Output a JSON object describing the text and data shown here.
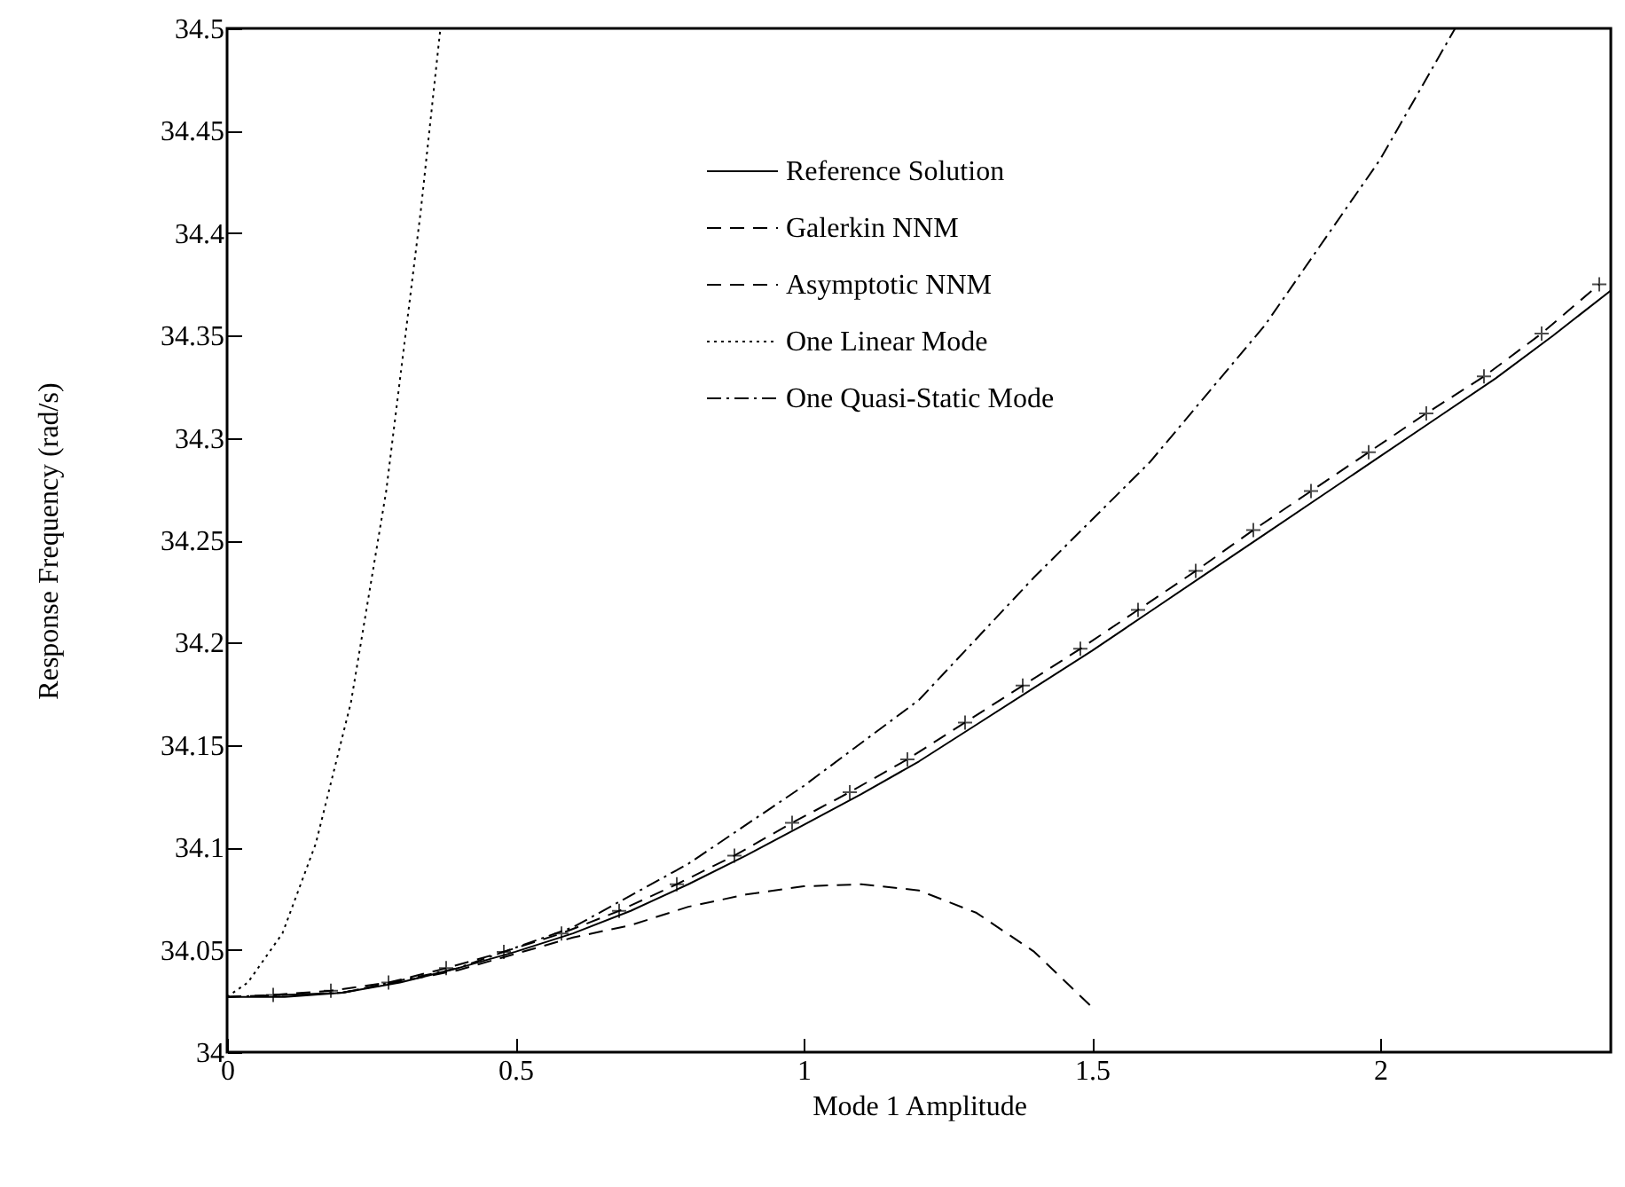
{
  "chart_data": {
    "type": "line",
    "xlabel": "Mode 1 Amplitude",
    "ylabel": "Response Frequency (rad/s)",
    "xlim": [
      0,
      2.4
    ],
    "ylim": [
      34,
      34.5
    ],
    "xticks": [
      0,
      0.5,
      1,
      1.5,
      2
    ],
    "yticks": [
      34,
      34.05,
      34.1,
      34.15,
      34.2,
      34.25,
      34.3,
      34.35,
      34.4,
      34.45,
      34.5
    ],
    "grid": false,
    "legend": "top",
    "series": [
      {
        "name": "Reference Solution",
        "color": "#000000",
        "line_style": "solid",
        "x": [
          0,
          0.1,
          0.2,
          0.3,
          0.4,
          0.5,
          0.6,
          0.7,
          0.8,
          0.9,
          1.0,
          1.1,
          1.2,
          1.3,
          1.4,
          1.5,
          1.6,
          1.7,
          1.8,
          1.9,
          2.0,
          2.1,
          2.2,
          2.3,
          2.4
        ],
        "values": [
          34.027,
          34.027,
          34.029,
          34.034,
          34.041,
          34.049,
          34.058,
          34.069,
          34.082,
          34.096,
          34.111,
          34.126,
          34.142,
          34.16,
          34.178,
          34.196,
          34.215,
          34.234,
          34.253,
          34.272,
          34.291,
          34.31,
          34.329,
          34.35,
          34.372
        ]
      },
      {
        "name": "Galerkin NNM",
        "color": "#000000",
        "line_style": "dashed",
        "marker": "cross",
        "x": [
          0.08,
          0.18,
          0.28,
          0.38,
          0.48,
          0.58,
          0.68,
          0.78,
          0.88,
          0.98,
          1.08,
          1.18,
          1.28,
          1.38,
          1.48,
          1.58,
          1.68,
          1.78,
          1.88,
          1.98,
          2.08,
          2.18,
          2.28,
          2.38
        ],
        "values": [
          34.028,
          34.03,
          34.034,
          34.041,
          34.049,
          34.058,
          34.069,
          34.082,
          34.096,
          34.112,
          34.127,
          34.143,
          34.161,
          34.179,
          34.197,
          34.216,
          34.235,
          34.255,
          34.274,
          34.293,
          34.312,
          34.33,
          34.351,
          34.375
        ]
      },
      {
        "name": "Asymptotic NNM",
        "color": "#000000",
        "line_style": "dashed",
        "x": [
          0,
          0.2,
          0.4,
          0.6,
          0.7,
          0.8,
          0.9,
          1.0,
          1.1,
          1.2,
          1.3,
          1.4,
          1.5
        ],
        "values": [
          34.027,
          34.029,
          34.04,
          34.056,
          34.062,
          34.071,
          34.077,
          34.081,
          34.082,
          34.079,
          34.068,
          34.049,
          34.022
        ]
      },
      {
        "name": "One Linear Mode",
        "color": "#000000",
        "line_style": "dotted",
        "x": [
          0,
          0.036,
          0.096,
          0.154,
          0.215,
          0.276,
          0.336,
          0.37
        ],
        "values": [
          34.027,
          34.034,
          34.058,
          34.102,
          34.171,
          34.274,
          34.411,
          34.5
        ]
      },
      {
        "name": "One Quasi-Static Mode",
        "color": "#000000",
        "line_style": "dashdot",
        "x": [
          0,
          0.2,
          0.4,
          0.6,
          0.8,
          1.0,
          1.2,
          1.4,
          1.6,
          1.8,
          2.0,
          2.13
        ],
        "values": [
          34.027,
          34.029,
          34.041,
          34.061,
          34.092,
          34.13,
          34.172,
          34.232,
          34.288,
          34.355,
          34.436,
          34.5
        ]
      }
    ]
  }
}
